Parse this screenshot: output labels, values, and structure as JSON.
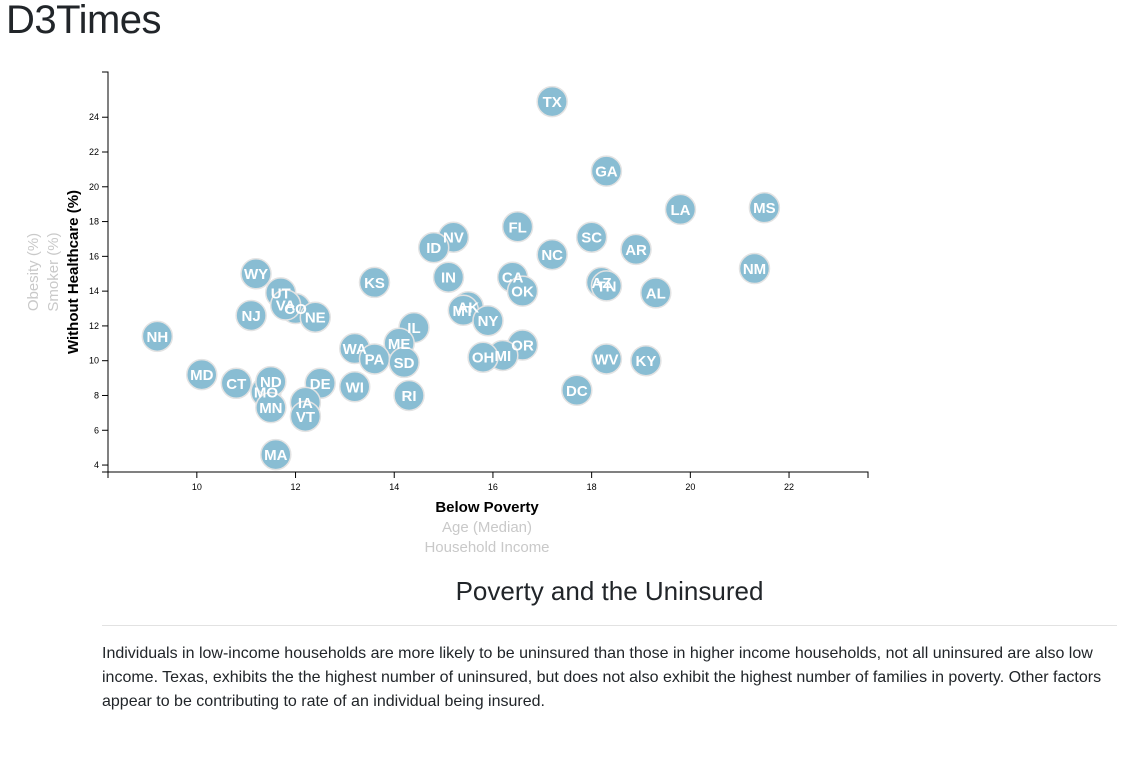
{
  "page": {
    "brand": "D3Times"
  },
  "article": {
    "title": "Poverty and the Uninsured",
    "body": "Individuals in low-income households are more likely to be uninsured than those in higher income households, not all uninsured are also low income. Texas, exhibits the the highest number of uninsured, but does not also exhibit the highest number of families in poverty. Other factors appear to be contributing to rate of an individual being insured."
  },
  "chart_data": {
    "type": "scatter",
    "x_axis": {
      "active": "Below Poverty",
      "options": [
        "Below Poverty",
        "Age (Median)",
        "Household Income"
      ],
      "range": [
        8.2,
        23.6
      ],
      "ticks": [
        10,
        12,
        14,
        16,
        18,
        20,
        22
      ]
    },
    "y_axis": {
      "active": "Without Healthcare (%)",
      "options": [
        "Without Healthcare (%)",
        "Smoker (%)",
        "Obesity (%)"
      ],
      "range": [
        3.6,
        26.6
      ],
      "ticks": [
        4,
        6,
        8,
        10,
        12,
        14,
        16,
        18,
        20,
        22,
        24
      ]
    },
    "colors": {
      "marker": "#89bdd3",
      "marker_stroke": "#e3e3e3",
      "label": "#ffffff"
    },
    "points": [
      {
        "abbr": "TX",
        "x": 17.2,
        "y": 24.9
      },
      {
        "abbr": "GA",
        "x": 18.3,
        "y": 20.9
      },
      {
        "abbr": "LA",
        "x": 19.8,
        "y": 18.7
      },
      {
        "abbr": "MS",
        "x": 21.5,
        "y": 18.8
      },
      {
        "abbr": "FL",
        "x": 16.5,
        "y": 17.7
      },
      {
        "abbr": "SC",
        "x": 18.0,
        "y": 17.1
      },
      {
        "abbr": "NV",
        "x": 15.2,
        "y": 17.1
      },
      {
        "abbr": "ID",
        "x": 14.8,
        "y": 16.5
      },
      {
        "abbr": "NC",
        "x": 17.2,
        "y": 16.1
      },
      {
        "abbr": "AR",
        "x": 18.9,
        "y": 16.4
      },
      {
        "abbr": "NM",
        "x": 21.3,
        "y": 15.3
      },
      {
        "abbr": "WY",
        "x": 11.2,
        "y": 15.0
      },
      {
        "abbr": "KS",
        "x": 13.6,
        "y": 14.5
      },
      {
        "abbr": "IN",
        "x": 15.1,
        "y": 14.8
      },
      {
        "abbr": "CA",
        "x": 16.4,
        "y": 14.8
      },
      {
        "abbr": "AZ",
        "x": 18.2,
        "y": 14.5
      },
      {
        "abbr": "TN",
        "x": 18.3,
        "y": 14.3
      },
      {
        "abbr": "OK",
        "x": 16.6,
        "y": 14.0
      },
      {
        "abbr": "AL",
        "x": 19.3,
        "y": 13.9
      },
      {
        "abbr": "UT",
        "x": 11.7,
        "y": 13.9
      },
      {
        "abbr": "CO",
        "x": 12.0,
        "y": 13.0
      },
      {
        "abbr": "VA",
        "x": 11.8,
        "y": 13.2
      },
      {
        "abbr": "NJ",
        "x": 11.1,
        "y": 12.6
      },
      {
        "abbr": "NE",
        "x": 12.4,
        "y": 12.5
      },
      {
        "abbr": "AK",
        "x": 15.5,
        "y": 13.1
      },
      {
        "abbr": "MT",
        "x": 15.4,
        "y": 12.9
      },
      {
        "abbr": "NY",
        "x": 15.9,
        "y": 12.3
      },
      {
        "abbr": "IL",
        "x": 14.4,
        "y": 11.9
      },
      {
        "abbr": "NH",
        "x": 9.2,
        "y": 11.4
      },
      {
        "abbr": "ME",
        "x": 14.1,
        "y": 11.0
      },
      {
        "abbr": "WA",
        "x": 13.2,
        "y": 10.7
      },
      {
        "abbr": "OR",
        "x": 16.6,
        "y": 10.9
      },
      {
        "abbr": "PA",
        "x": 13.6,
        "y": 10.1
      },
      {
        "abbr": "SD",
        "x": 14.2,
        "y": 9.9
      },
      {
        "abbr": "MI",
        "x": 16.2,
        "y": 10.3
      },
      {
        "abbr": "OH",
        "x": 15.8,
        "y": 10.2
      },
      {
        "abbr": "WV",
        "x": 18.3,
        "y": 10.1
      },
      {
        "abbr": "KY",
        "x": 19.1,
        "y": 10.0
      },
      {
        "abbr": "MD",
        "x": 10.1,
        "y": 9.2
      },
      {
        "abbr": "CT",
        "x": 10.8,
        "y": 8.7
      },
      {
        "abbr": "MO",
        "x": 11.4,
        "y": 8.2
      },
      {
        "abbr": "ND",
        "x": 11.5,
        "y": 8.8
      },
      {
        "abbr": "DE",
        "x": 12.5,
        "y": 8.7
      },
      {
        "abbr": "WI",
        "x": 13.2,
        "y": 8.5
      },
      {
        "abbr": "DC",
        "x": 17.7,
        "y": 8.3
      },
      {
        "abbr": "RI",
        "x": 14.3,
        "y": 8.0
      },
      {
        "abbr": "IA",
        "x": 12.2,
        "y": 7.6
      },
      {
        "abbr": "MN",
        "x": 11.5,
        "y": 7.3
      },
      {
        "abbr": "VT",
        "x": 12.2,
        "y": 6.8
      },
      {
        "abbr": "MA",
        "x": 11.6,
        "y": 4.6
      }
    ]
  }
}
